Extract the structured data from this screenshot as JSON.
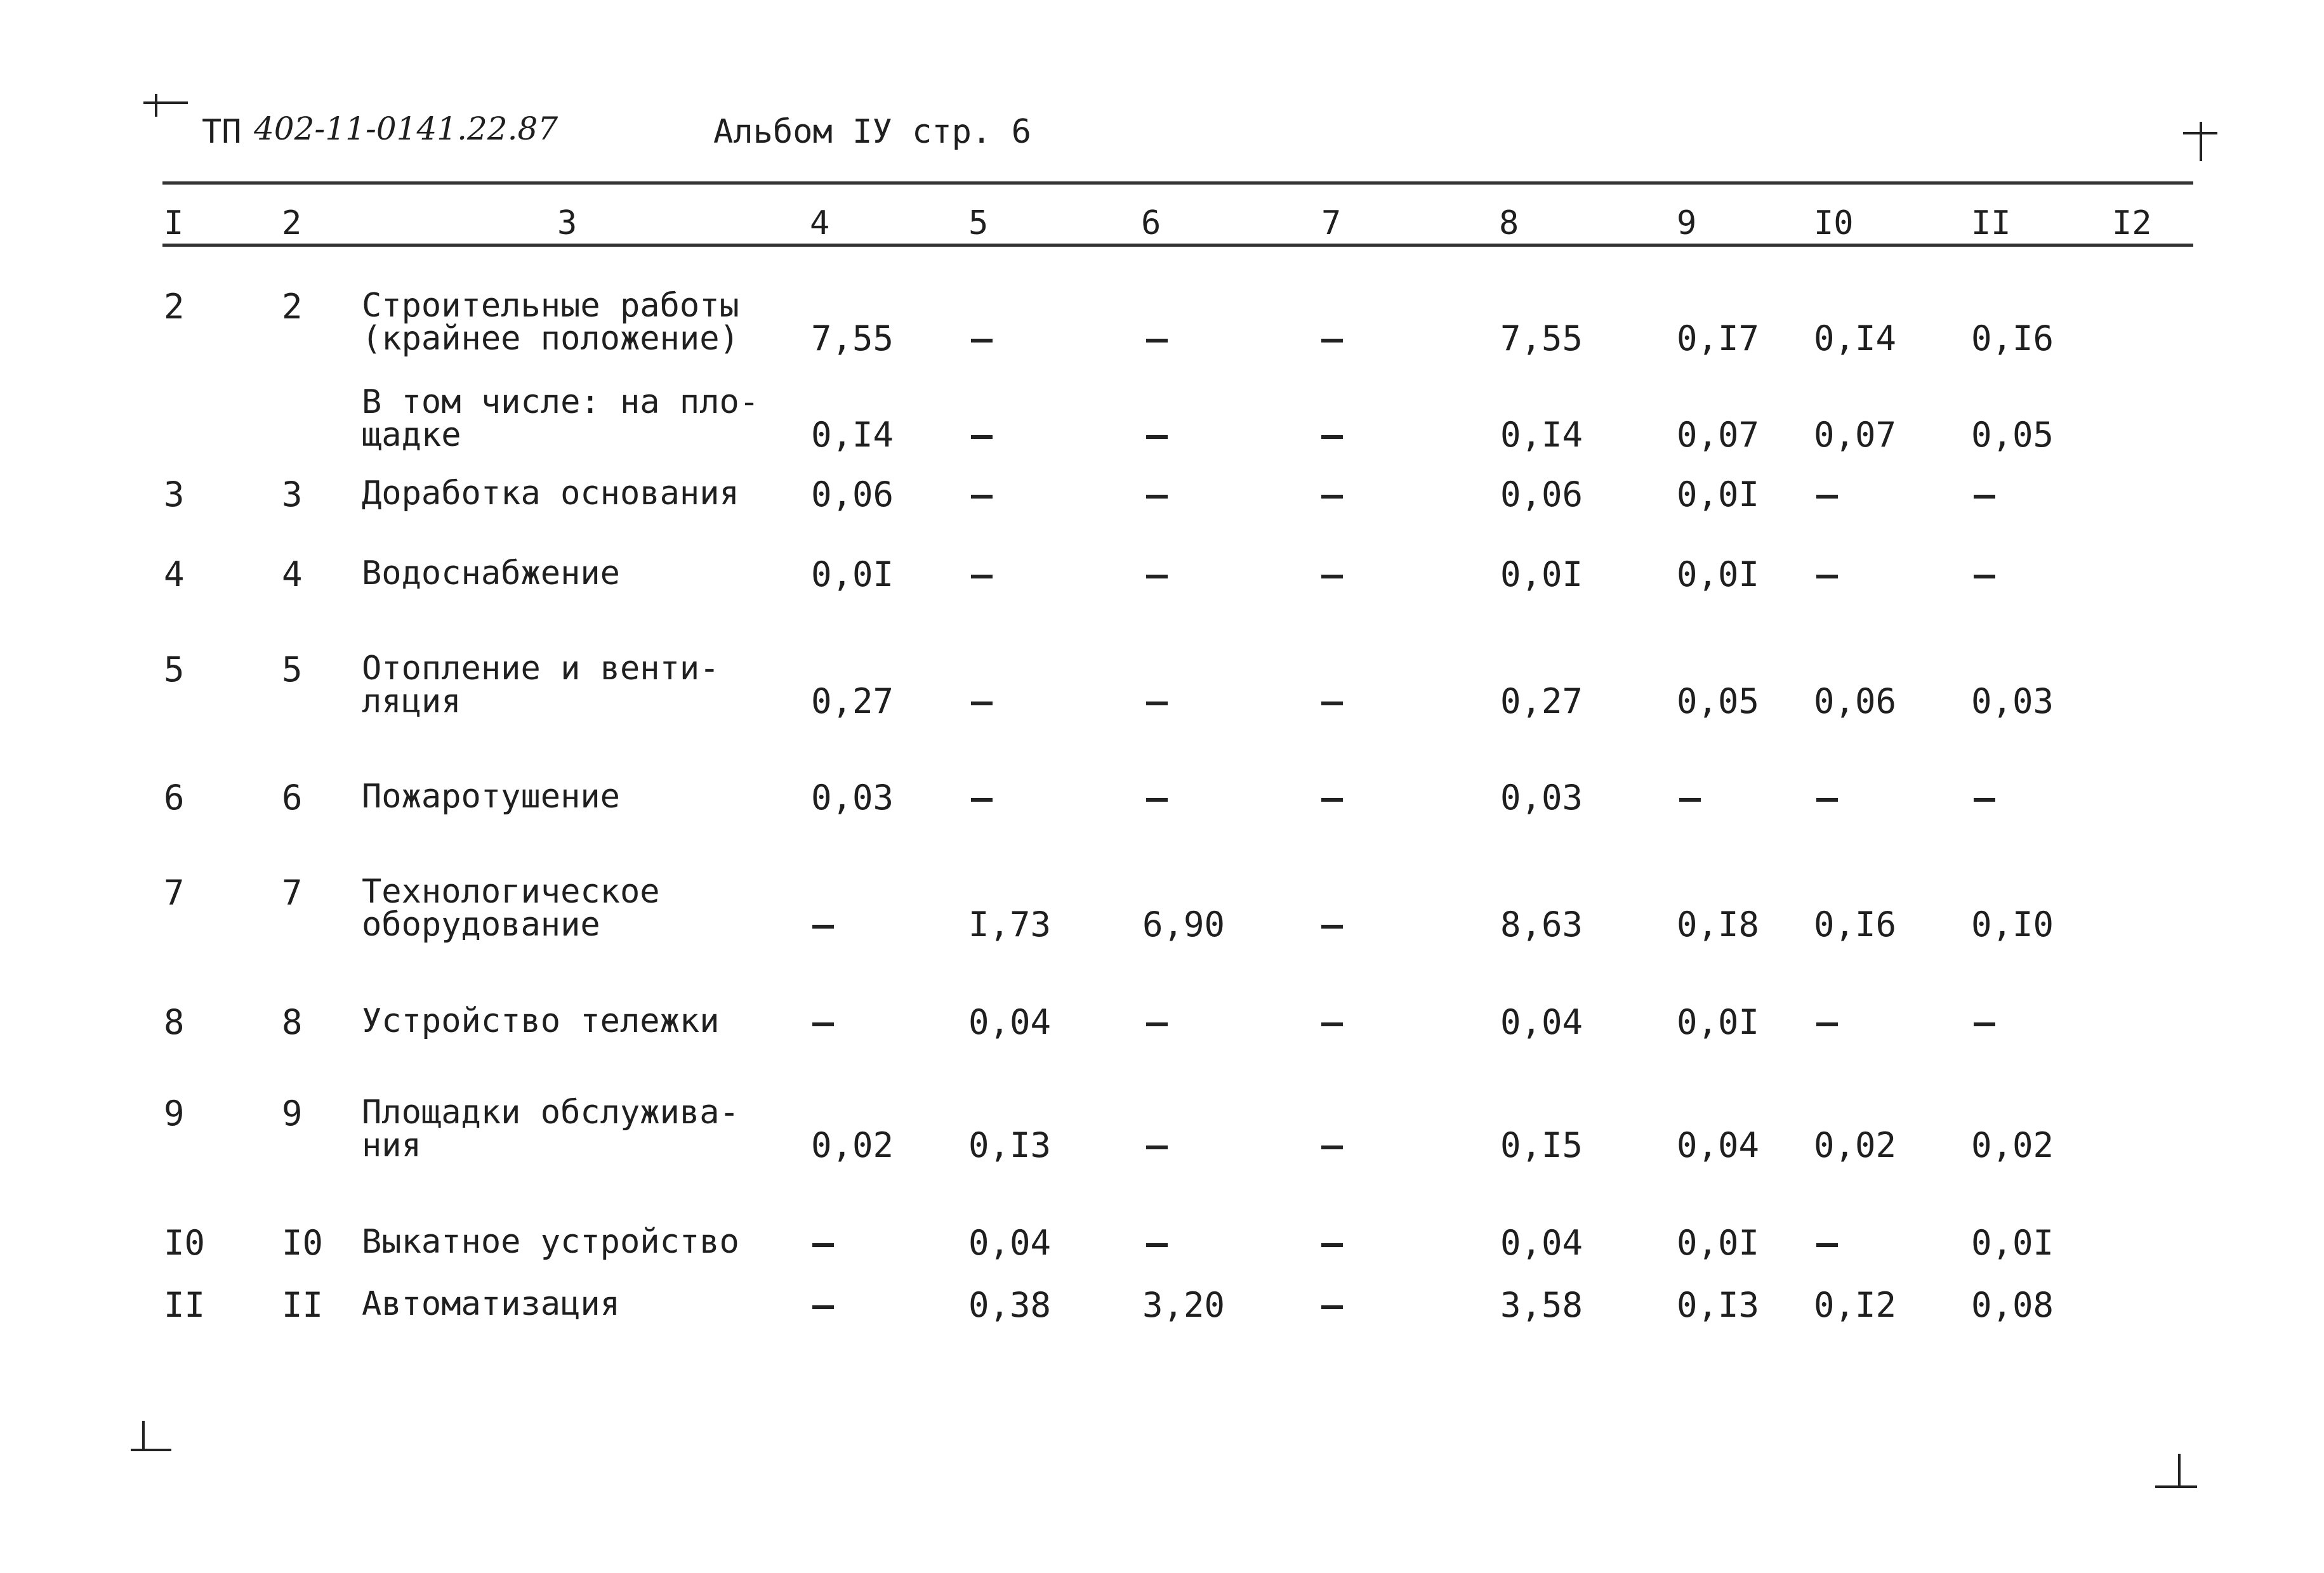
{
  "header": {
    "prefix": "ТП",
    "project_code": "402-11-0141.22.87",
    "album": "Альбом IУ стр. 6"
  },
  "columns": [
    "I",
    "2",
    "3",
    "4",
    "5",
    "6",
    "7",
    "8",
    "9",
    "I0",
    "II",
    "I2"
  ],
  "rows": [
    {
      "n1": "2",
      "n2": "2",
      "desc": "Строительные работы\n(крайнее положение)",
      "c4": "7,55",
      "c5": "-",
      "c6": "-",
      "c7": "-",
      "c8": "7,55",
      "c9": "0,I7",
      "c10": "0,I4",
      "c11": "0,I6"
    },
    {
      "n1": "",
      "n2": "",
      "desc": "В том числе: на пло-\nщадке",
      "c4": "0,I4",
      "c5": "-",
      "c6": "-",
      "c7": "-",
      "c8": "0,I4",
      "c9": "0,07",
      "c10": "0,07",
      "c11": "0,05"
    },
    {
      "n1": "3",
      "n2": "3",
      "desc": "Доработка основания",
      "c4": "0,06",
      "c5": "-",
      "c6": "-",
      "c7": "-",
      "c8": "0,06",
      "c9": "0,0I",
      "c10": "-",
      "c11": "-"
    },
    {
      "n1": "4",
      "n2": "4",
      "desc": "Водоснабжение",
      "c4": "0,0I",
      "c5": "-",
      "c6": "-",
      "c7": "-",
      "c8": "0,0I",
      "c9": "0,0I",
      "c10": "-",
      "c11": "-"
    },
    {
      "n1": "5",
      "n2": "5",
      "desc": "Отопление и венти-\nляция",
      "c4": "0,27",
      "c5": "-",
      "c6": "-",
      "c7": "-",
      "c8": "0,27",
      "c9": "0,05",
      "c10": "0,06",
      "c11": "0,03"
    },
    {
      "n1": "6",
      "n2": "6",
      "desc": "Пожаротушение",
      "c4": "0,03",
      "c5": "-",
      "c6": "-",
      "c7": "-",
      "c8": "0,03",
      "c9": "-",
      "c10": "-",
      "c11": "-"
    },
    {
      "n1": "7",
      "n2": "7",
      "desc": "Технологическое\nоборудование",
      "c4": "-",
      "c5": "I,73",
      "c6": "6,90",
      "c7": "-",
      "c8": "8,63",
      "c9": "0,I8",
      "c10": "0,I6",
      "c11": "0,I0"
    },
    {
      "n1": "8",
      "n2": "8",
      "desc": "Устройство тележки",
      "c4": "-",
      "c5": "0,04",
      "c6": "-",
      "c7": "-",
      "c8": "0,04",
      "c9": "0,0I",
      "c10": "-",
      "c11": "-"
    },
    {
      "n1": "9",
      "n2": "9",
      "desc": "Площадки обслужива-\nния",
      "c4": "0,02",
      "c5": "0,I3",
      "c6": "-",
      "c7": "-",
      "c8": "0,I5",
      "c9": "0,04",
      "c10": "0,02",
      "c11": "0,02"
    },
    {
      "n1": "I0",
      "n2": "I0",
      "desc": "Выкатное устройство",
      "c4": "-",
      "c5": "0,04",
      "c6": "-",
      "c7": "-",
      "c8": "0,04",
      "c9": "0,0I",
      "c10": "-",
      "c11": "0,0I"
    },
    {
      "n1": "II",
      "n2": "II",
      "desc": "Автоматизация",
      "c4": "-",
      "c5": "0,38",
      "c6": "3,20",
      "c7": "-",
      "c8": "3,58",
      "c9": "0,I3",
      "c10": "0,I2",
      "c11": "0,08"
    }
  ]
}
